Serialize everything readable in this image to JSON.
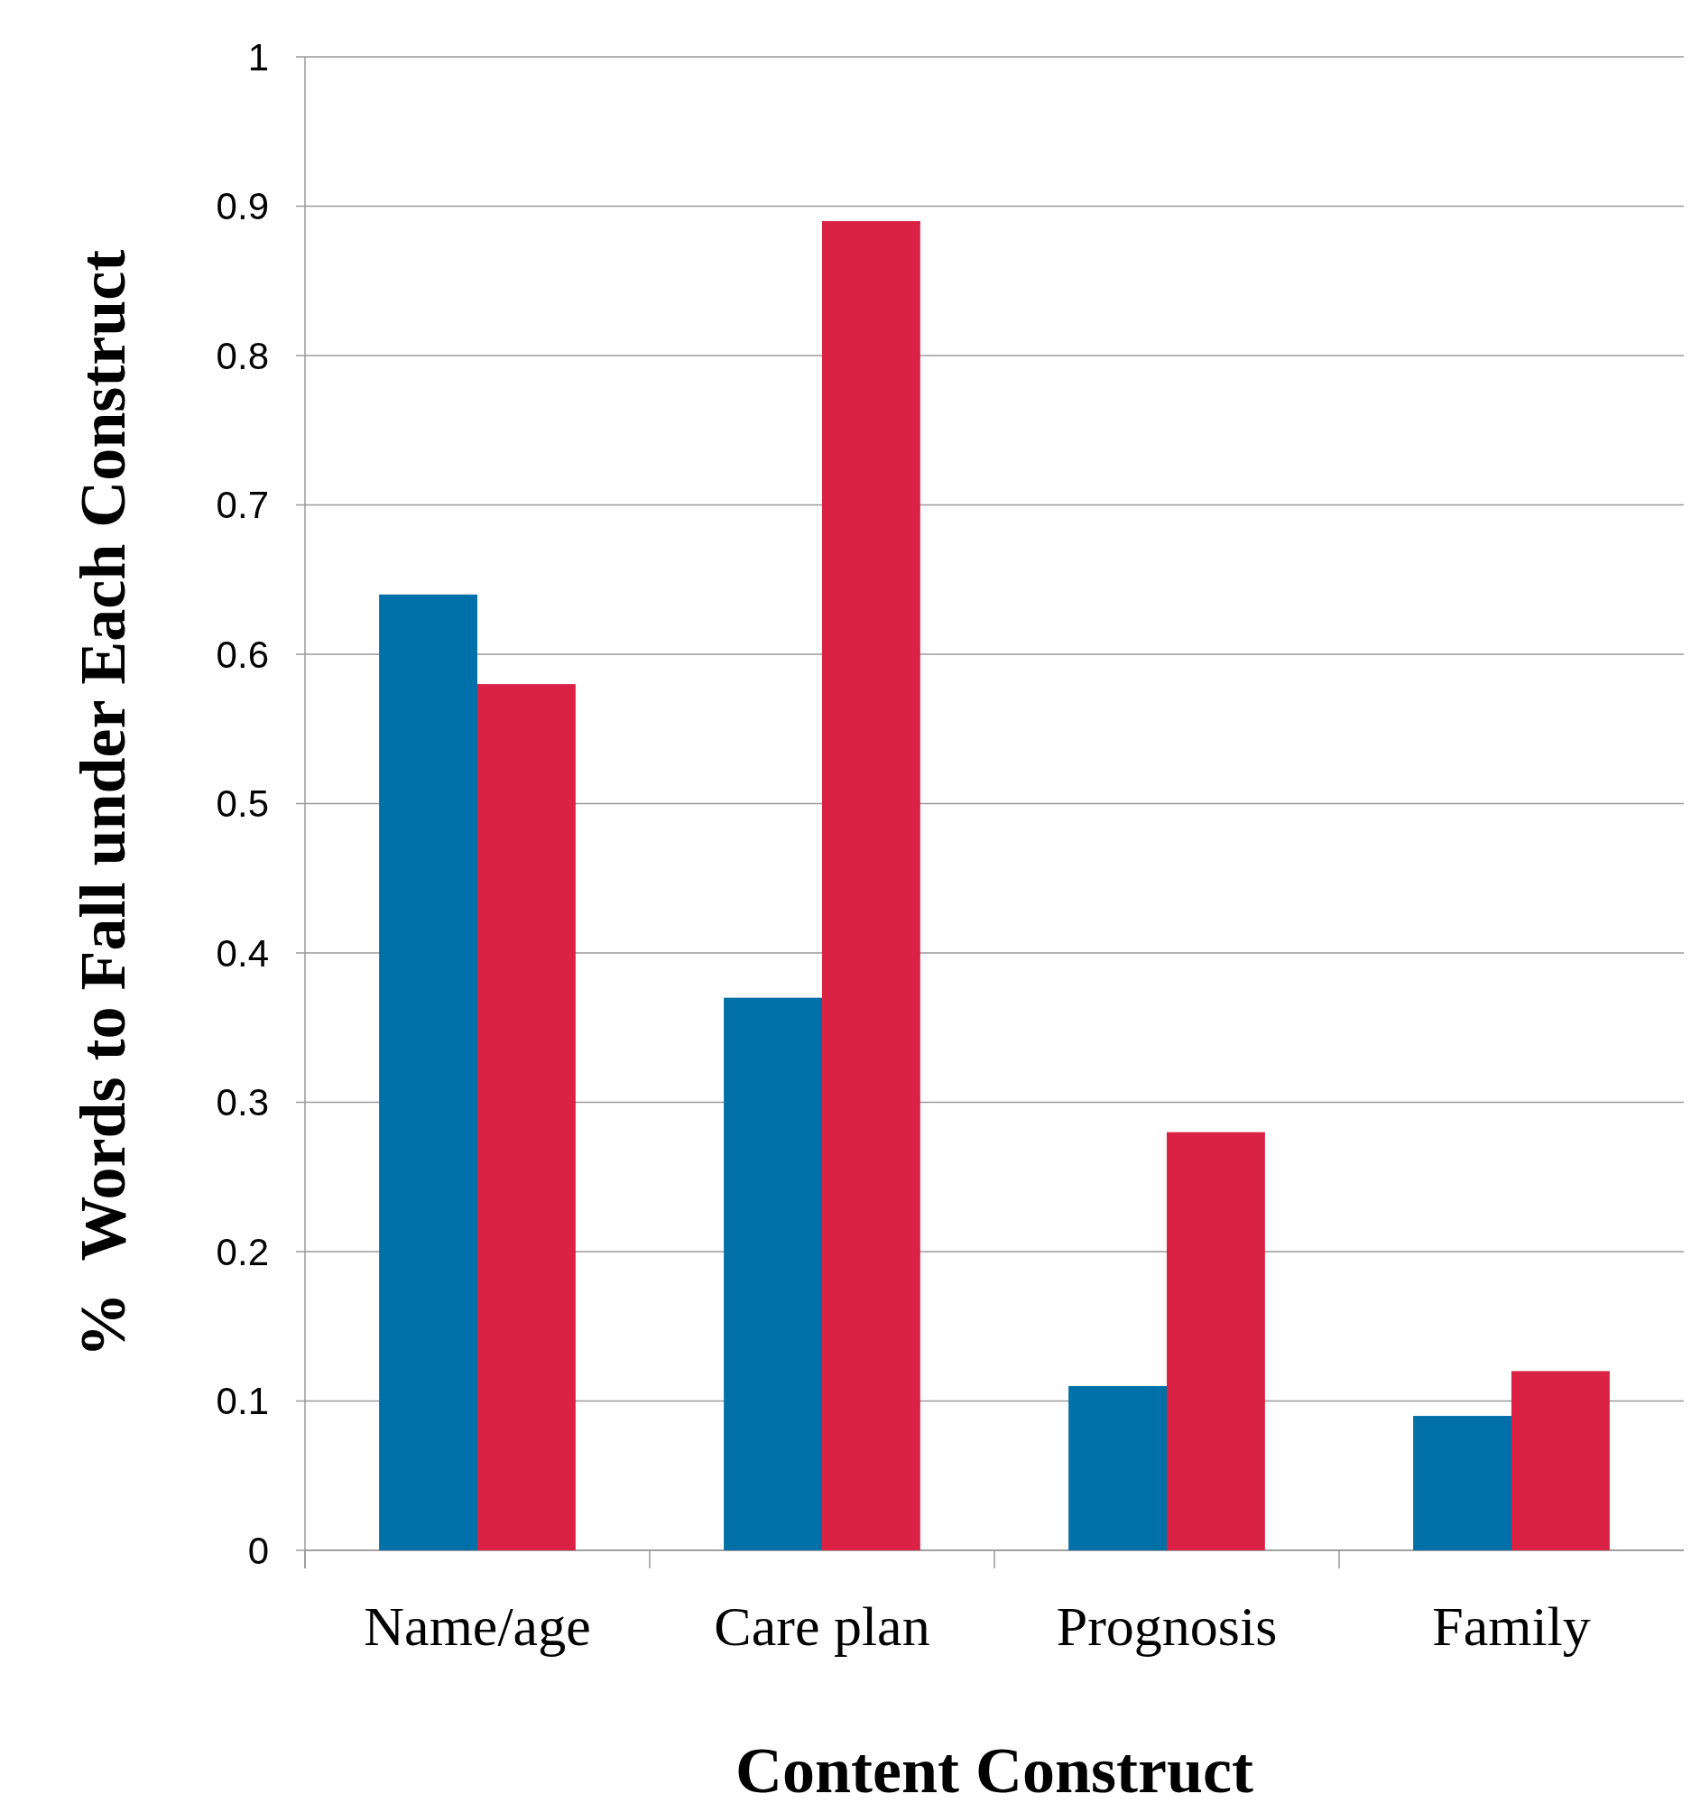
{
  "chart_data": {
    "type": "bar",
    "xlabel": "Content Construct",
    "ylabel": "%  Words to Fall under Each Construct",
    "categories": [
      "Name/age",
      "Care plan",
      "Prognosis",
      "Family"
    ],
    "series": [
      {
        "color": "#0070a8",
        "values": [
          0.64,
          0.37,
          0.11,
          0.09
        ]
      },
      {
        "color": "#da2244",
        "values": [
          0.58,
          0.89,
          0.28,
          0.12
        ]
      }
    ],
    "ylim": [
      0,
      1
    ],
    "yticks": [
      0,
      0.1,
      0.2,
      0.3,
      0.4,
      0.5,
      0.6,
      0.7,
      0.8,
      0.9,
      1
    ],
    "grid": "y"
  }
}
